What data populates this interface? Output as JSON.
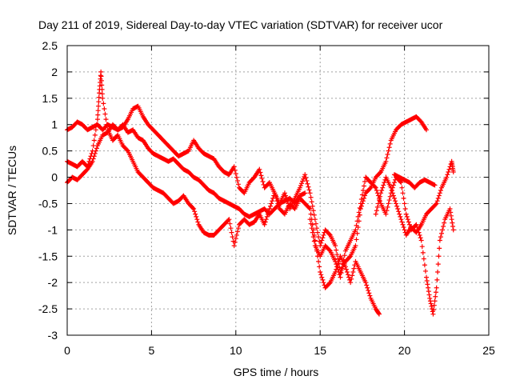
{
  "chart_data": {
    "type": "scatter",
    "title": "Day 211 of 2019, Sidereal Day-to-day VTEC variation (SDTVAR) for receiver ucor",
    "xlabel": "GPS time / hours",
    "ylabel": "SDTVAR / TECUs",
    "xlim": [
      0,
      25
    ],
    "ylim": [
      -3,
      2.5
    ],
    "x_ticks": [
      "0",
      "5",
      "10",
      "15",
      "20",
      "25"
    ],
    "y_ticks": [
      "-3",
      "-2.5",
      "-2",
      "-1.5",
      "-1",
      "-0.5",
      "0",
      "0.5",
      "1",
      "1.5",
      "2",
      "2.5"
    ],
    "grid": true,
    "marker": "plus",
    "color": "#ff0000",
    "series": [
      {
        "points": [
          [
            0,
            0.9
          ],
          [
            0.3,
            0.95
          ],
          [
            0.6,
            1.05
          ],
          [
            0.9,
            1.0
          ],
          [
            1.2,
            0.9
          ],
          [
            1.5,
            0.95
          ],
          [
            1.8,
            1.0
          ],
          [
            2.1,
            0.9
          ],
          [
            2.4,
            1.0
          ],
          [
            2.7,
            0.95
          ],
          [
            3.0,
            0.9
          ],
          [
            3.3,
            1.0
          ],
          [
            3.6,
            0.85
          ],
          [
            3.9,
            0.9
          ],
          [
            4.2,
            0.75
          ],
          [
            4.5,
            0.7
          ],
          [
            4.8,
            0.55
          ],
          [
            5.1,
            0.45
          ],
          [
            5.4,
            0.4
          ],
          [
            5.7,
            0.35
          ],
          [
            6.0,
            0.3
          ],
          [
            6.3,
            0.35
          ],
          [
            6.6,
            0.25
          ],
          [
            6.9,
            0.15
          ],
          [
            7.2,
            0.1
          ],
          [
            7.5,
            0.0
          ],
          [
            7.8,
            -0.05
          ],
          [
            8.1,
            -0.15
          ],
          [
            8.4,
            -0.25
          ],
          [
            8.7,
            -0.3
          ],
          [
            9.0,
            -0.4
          ],
          [
            9.3,
            -0.45
          ],
          [
            9.6,
            -0.5
          ],
          [
            9.9,
            -0.55
          ],
          [
            10.2,
            -0.6
          ],
          [
            10.5,
            -0.7
          ],
          [
            10.8,
            -0.75
          ],
          [
            11.1,
            -0.7
          ],
          [
            11.4,
            -0.65
          ],
          [
            11.7,
            -0.6
          ],
          [
            12.0,
            -0.7
          ],
          [
            12.3,
            -0.6
          ],
          [
            12.6,
            -0.5
          ],
          [
            12.9,
            -0.45
          ],
          [
            13.2,
            -0.4
          ],
          [
            13.5,
            -0.5
          ],
          [
            13.8,
            -0.35
          ],
          [
            14.1,
            -0.3
          ]
        ]
      },
      {
        "points": [
          [
            0,
            0.3
          ],
          [
            0.3,
            0.25
          ],
          [
            0.6,
            0.2
          ],
          [
            0.9,
            0.3
          ],
          [
            1.2,
            0.2
          ],
          [
            1.5,
            0.5
          ],
          [
            1.8,
            1.1
          ],
          [
            1.9,
            1.6
          ],
          [
            2.0,
            2.0
          ],
          [
            2.1,
            1.5
          ],
          [
            2.4,
            0.9
          ],
          [
            2.7,
            0.7
          ],
          [
            3.0,
            0.8
          ],
          [
            3.3,
            0.6
          ],
          [
            3.6,
            0.5
          ],
          [
            3.9,
            0.3
          ],
          [
            4.2,
            0.1
          ],
          [
            4.5,
            0.0
          ],
          [
            4.8,
            -0.1
          ],
          [
            5.1,
            -0.2
          ],
          [
            5.4,
            -0.25
          ],
          [
            5.7,
            -0.3
          ],
          [
            6.0,
            -0.4
          ],
          [
            6.3,
            -0.5
          ],
          [
            6.6,
            -0.45
          ],
          [
            6.9,
            -0.35
          ],
          [
            7.2,
            -0.5
          ],
          [
            7.5,
            -0.6
          ],
          [
            7.8,
            -0.9
          ],
          [
            8.1,
            -1.05
          ],
          [
            8.4,
            -1.1
          ],
          [
            8.7,
            -1.1
          ],
          [
            9.0,
            -1.0
          ],
          [
            9.3,
            -0.9
          ],
          [
            9.6,
            -0.8
          ],
          [
            9.9,
            -1.3
          ],
          [
            10.2,
            -0.9
          ],
          [
            10.5,
            -0.8
          ],
          [
            10.8,
            -0.9
          ],
          [
            11.1,
            -0.85
          ],
          [
            11.4,
            -0.7
          ],
          [
            11.7,
            -0.9
          ],
          [
            12.0,
            -0.6
          ],
          [
            12.3,
            -0.3
          ],
          [
            12.6,
            -0.6
          ],
          [
            12.9,
            -0.7
          ],
          [
            13.2,
            -0.5
          ],
          [
            13.5,
            -0.6
          ],
          [
            13.8,
            -0.4
          ],
          [
            14.1,
            -0.5
          ],
          [
            14.4,
            -0.6
          ],
          [
            14.7,
            -1.2
          ],
          [
            15.0,
            -1.8
          ],
          [
            15.3,
            -2.1
          ],
          [
            15.6,
            -2.0
          ],
          [
            15.9,
            -1.8
          ],
          [
            16.2,
            -1.5
          ],
          [
            16.5,
            -1.7
          ],
          [
            16.8,
            -2.0
          ],
          [
            17.1,
            -1.6
          ],
          [
            17.4,
            -1.8
          ],
          [
            17.7,
            -2.0
          ],
          [
            18.0,
            -2.3
          ],
          [
            18.3,
            -2.5
          ],
          [
            18.5,
            -2.6
          ]
        ]
      },
      {
        "points": [
          [
            0,
            -0.1
          ],
          [
            0.3,
            0.0
          ],
          [
            0.6,
            -0.05
          ],
          [
            0.9,
            0.05
          ],
          [
            1.2,
            0.15
          ],
          [
            1.5,
            0.3
          ],
          [
            1.8,
            0.6
          ],
          [
            2.1,
            0.8
          ],
          [
            2.4,
            0.85
          ],
          [
            2.7,
            1.0
          ],
          [
            3.0,
            0.9
          ],
          [
            3.3,
            0.95
          ],
          [
            3.6,
            1.1
          ],
          [
            3.9,
            1.3
          ],
          [
            4.2,
            1.35
          ],
          [
            4.5,
            1.15
          ],
          [
            4.8,
            1.0
          ],
          [
            5.1,
            0.9
          ],
          [
            5.4,
            0.8
          ],
          [
            5.7,
            0.7
          ],
          [
            6.0,
            0.6
          ],
          [
            6.3,
            0.5
          ],
          [
            6.6,
            0.4
          ],
          [
            6.9,
            0.45
          ],
          [
            7.2,
            0.5
          ],
          [
            7.5,
            0.7
          ],
          [
            7.8,
            0.55
          ],
          [
            8.1,
            0.45
          ],
          [
            8.4,
            0.4
          ],
          [
            8.7,
            0.35
          ],
          [
            9.0,
            0.2
          ],
          [
            9.3,
            0.1
          ],
          [
            9.6,
            0.05
          ],
          [
            9.9,
            0.2
          ],
          [
            10.2,
            -0.2
          ],
          [
            10.5,
            -0.3
          ],
          [
            10.8,
            -0.1
          ],
          [
            11.1,
            0.0
          ],
          [
            11.4,
            0.15
          ],
          [
            11.7,
            -0.2
          ],
          [
            12.0,
            -0.1
          ],
          [
            12.3,
            -0.3
          ],
          [
            12.6,
            -0.5
          ],
          [
            12.9,
            -0.3
          ],
          [
            13.2,
            -0.6
          ],
          [
            13.5,
            -0.4
          ],
          [
            13.8,
            -0.2
          ],
          [
            14.1,
            0.05
          ],
          [
            14.4,
            -0.3
          ],
          [
            14.7,
            -0.8
          ],
          [
            15.0,
            -1.3
          ],
          [
            15.3,
            -1.0
          ],
          [
            15.6,
            -1.1
          ],
          [
            15.9,
            -1.3
          ],
          [
            16.2,
            -1.8
          ],
          [
            16.5,
            -1.6
          ],
          [
            16.8,
            -1.5
          ],
          [
            17.1,
            -1.3
          ],
          [
            17.4,
            -0.6
          ],
          [
            17.7,
            -0.3
          ],
          [
            18.0,
            -0.2
          ],
          [
            18.3,
            0.0
          ],
          [
            18.6,
            0.1
          ],
          [
            18.9,
            0.3
          ],
          [
            19.2,
            0.7
          ],
          [
            19.5,
            0.9
          ],
          [
            19.8,
            1.0
          ],
          [
            20.1,
            1.05
          ],
          [
            20.4,
            1.1
          ],
          [
            20.7,
            1.15
          ],
          [
            21.0,
            1.05
          ],
          [
            21.3,
            0.9
          ]
        ]
      },
      {
        "points": [
          [
            14.4,
            -0.8
          ],
          [
            14.7,
            -1.3
          ],
          [
            15.0,
            -1.5
          ],
          [
            15.3,
            -1.3
          ],
          [
            15.6,
            -1.4
          ],
          [
            15.9,
            -1.6
          ],
          [
            16.2,
            -1.9
          ],
          [
            16.5,
            -1.4
          ],
          [
            16.8,
            -1.2
          ],
          [
            17.1,
            -1.0
          ],
          [
            17.4,
            -0.5
          ],
          [
            17.7,
            0.0
          ],
          [
            18.0,
            -0.1
          ],
          [
            18.3,
            -0.2
          ],
          [
            18.6,
            -0.5
          ],
          [
            18.9,
            -0.7
          ],
          [
            19.2,
            -0.3
          ],
          [
            19.5,
            0.0
          ],
          [
            19.8,
            -0.1
          ],
          [
            20.1,
            -0.7
          ],
          [
            20.4,
            -1.0
          ],
          [
            20.7,
            -0.9
          ],
          [
            21.0,
            -1.2
          ],
          [
            21.3,
            -1.9
          ],
          [
            21.5,
            -2.3
          ],
          [
            21.7,
            -2.6
          ],
          [
            21.9,
            -2.1
          ],
          [
            22.1,
            -1.2
          ],
          [
            22.4,
            -0.8
          ],
          [
            22.7,
            -0.6
          ],
          [
            22.9,
            -1.0
          ]
        ]
      },
      {
        "points": [
          [
            18.3,
            -0.7
          ],
          [
            18.6,
            -0.3
          ],
          [
            18.9,
            0.0
          ],
          [
            19.2,
            -0.2
          ],
          [
            19.5,
            -0.5
          ],
          [
            19.8,
            -0.8
          ],
          [
            20.1,
            -1.1
          ],
          [
            20.4,
            -0.95
          ],
          [
            20.7,
            -1.05
          ],
          [
            21.0,
            -0.9
          ],
          [
            21.3,
            -0.7
          ],
          [
            21.6,
            -0.6
          ],
          [
            21.9,
            -0.5
          ],
          [
            22.2,
            -0.2
          ],
          [
            22.5,
            0.0
          ],
          [
            22.8,
            0.3
          ],
          [
            22.9,
            0.1
          ]
        ]
      },
      {
        "points": [
          [
            19.4,
            0.05
          ],
          [
            19.7,
            0.0
          ],
          [
            20.0,
            -0.05
          ],
          [
            20.3,
            -0.1
          ],
          [
            20.6,
            -0.2
          ],
          [
            20.9,
            -0.1
          ],
          [
            21.2,
            -0.05
          ],
          [
            21.5,
            -0.1
          ],
          [
            21.8,
            -0.15
          ]
        ]
      }
    ]
  }
}
